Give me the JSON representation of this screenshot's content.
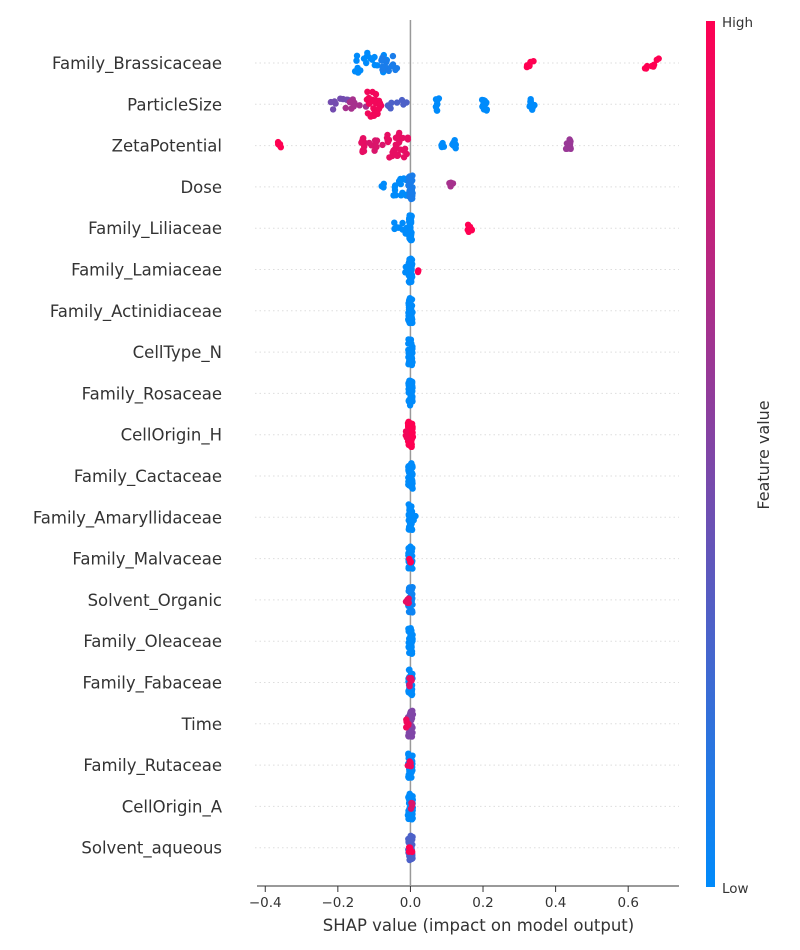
{
  "colors": {
    "low": "#008bfb",
    "high": "#ff0052",
    "zero_line": "#999999",
    "grid": "#dddddd",
    "text": "#333333"
  },
  "chart_data": {
    "type": "scatter",
    "subtype": "shap-beeswarm",
    "xlabel": "SHAP value (impact on model output)",
    "xlim": [
      -0.42,
      0.74
    ],
    "xticks": [
      -0.4,
      -0.2,
      0.0,
      0.2,
      0.4,
      0.6
    ],
    "xtick_labels": [
      "−0.4",
      "−0.2",
      "0.0",
      "0.2",
      "0.4",
      "0.6"
    ],
    "colorbar": {
      "title": "Feature value",
      "high_label": "High",
      "low_label": "Low"
    },
    "features": [
      {
        "name": "Family_Brassicaceae",
        "clusters": [
          {
            "x": -0.11,
            "v": 0.0,
            "n": 20,
            "w": 0.045
          },
          {
            "x": -0.06,
            "v": 0.1,
            "n": 14,
            "w": 0.03
          },
          {
            "x": 0.33,
            "v": 1.0,
            "n": 6,
            "w": 0.01
          },
          {
            "x": 0.665,
            "v": 1.0,
            "n": 8,
            "w": 0.02
          }
        ]
      },
      {
        "name": "ParticleSize",
        "clusters": [
          {
            "x": -0.19,
            "v": 0.45,
            "n": 8,
            "w": 0.03
          },
          {
            "x": -0.15,
            "v": 0.65,
            "n": 8,
            "w": 0.03
          },
          {
            "x": -0.1,
            "v": 0.95,
            "n": 28,
            "w": 0.02
          },
          {
            "x": -0.04,
            "v": 0.3,
            "n": 8,
            "w": 0.03
          },
          {
            "x": 0.075,
            "v": 0.0,
            "n": 10,
            "w": 0.005
          },
          {
            "x": 0.205,
            "v": 0.0,
            "n": 10,
            "w": 0.008
          },
          {
            "x": 0.335,
            "v": 0.0,
            "n": 10,
            "w": 0.008
          }
        ]
      },
      {
        "name": "ZetaPotential",
        "clusters": [
          {
            "x": -0.36,
            "v": 1.0,
            "n": 5,
            "w": 0.005
          },
          {
            "x": -0.13,
            "v": 0.9,
            "n": 12,
            "w": 0.005
          },
          {
            "x": -0.095,
            "v": 0.85,
            "n": 8,
            "w": 0.02
          },
          {
            "x": -0.035,
            "v": 0.9,
            "n": 30,
            "w": 0.03
          },
          {
            "x": 0.09,
            "v": 0.0,
            "n": 4,
            "w": 0.005
          },
          {
            "x": 0.12,
            "v": 0.0,
            "n": 8,
            "w": 0.005
          },
          {
            "x": 0.435,
            "v": 0.6,
            "n": 10,
            "w": 0.008
          }
        ]
      },
      {
        "name": "Dose",
        "clusters": [
          {
            "x": -0.07,
            "v": 0.0,
            "n": 3,
            "w": 0.01
          },
          {
            "x": -0.03,
            "v": 0.0,
            "n": 16,
            "w": 0.02
          },
          {
            "x": 0.0,
            "v": 0.1,
            "n": 30,
            "w": 0.006
          },
          {
            "x": 0.115,
            "v": 0.65,
            "n": 6,
            "w": 0.008
          }
        ]
      },
      {
        "name": "Family_Liliaceae",
        "clusters": [
          {
            "x": -0.025,
            "v": 0.0,
            "n": 10,
            "w": 0.02
          },
          {
            "x": 0.0,
            "v": 0.0,
            "n": 40,
            "w": 0.004
          },
          {
            "x": 0.165,
            "v": 1.0,
            "n": 6,
            "w": 0.008
          }
        ]
      },
      {
        "name": "Family_Lamiaceae",
        "clusters": [
          {
            "x": 0.0,
            "v": 0.0,
            "n": 40,
            "w": 0.005
          },
          {
            "x": -0.012,
            "v": 0.0,
            "n": 3,
            "w": 0.004
          },
          {
            "x": 0.022,
            "v": 1.0,
            "n": 2,
            "w": 0.002
          }
        ]
      },
      {
        "name": "Family_Actinidiaceae",
        "clusters": [
          {
            "x": 0.0,
            "v": 0.0,
            "n": 40,
            "w": 0.006
          }
        ]
      },
      {
        "name": "CellType_N",
        "clusters": [
          {
            "x": 0.0,
            "v": 0.0,
            "n": 40,
            "w": 0.006
          }
        ]
      },
      {
        "name": "Family_Rosaceae",
        "clusters": [
          {
            "x": 0.0,
            "v": 0.0,
            "n": 40,
            "w": 0.006
          }
        ]
      },
      {
        "name": "CellOrigin_H",
        "clusters": [
          {
            "x": 0.0,
            "v": 1.0,
            "n": 44,
            "w": 0.007
          },
          {
            "x": -0.01,
            "v": 0.95,
            "n": 4,
            "w": 0.004
          }
        ]
      },
      {
        "name": "Family_Cactaceae",
        "clusters": [
          {
            "x": 0.0,
            "v": 0.0,
            "n": 40,
            "w": 0.006
          }
        ]
      },
      {
        "name": "Family_Amaryllidaceae",
        "clusters": [
          {
            "x": 0.0,
            "v": 0.0,
            "n": 40,
            "w": 0.005
          },
          {
            "x": 0.012,
            "v": 0.0,
            "n": 3,
            "w": 0.004
          }
        ]
      },
      {
        "name": "Family_Malvaceae",
        "clusters": [
          {
            "x": 0.0,
            "v": 0.0,
            "n": 38,
            "w": 0.006
          },
          {
            "x": 0.0,
            "v": 1.0,
            "n": 4,
            "w": 0.004
          }
        ]
      },
      {
        "name": "Solvent_Organic",
        "clusters": [
          {
            "x": 0.0,
            "v": 0.05,
            "n": 36,
            "w": 0.006
          },
          {
            "x": -0.008,
            "v": 0.9,
            "n": 6,
            "w": 0.005
          }
        ]
      },
      {
        "name": "Family_Oleaceae",
        "clusters": [
          {
            "x": 0.0,
            "v": 0.0,
            "n": 40,
            "w": 0.006
          }
        ]
      },
      {
        "name": "Family_Fabaceae",
        "clusters": [
          {
            "x": 0.0,
            "v": 0.0,
            "n": 36,
            "w": 0.006
          },
          {
            "x": 0.0,
            "v": 0.9,
            "n": 6,
            "w": 0.004
          }
        ]
      },
      {
        "name": "Time",
        "clusters": [
          {
            "x": 0.0,
            "v": 0.5,
            "n": 36,
            "w": 0.007
          },
          {
            "x": -0.008,
            "v": 0.95,
            "n": 5,
            "w": 0.004
          }
        ]
      },
      {
        "name": "Family_Rutaceae",
        "clusters": [
          {
            "x": 0.0,
            "v": 0.0,
            "n": 36,
            "w": 0.006
          },
          {
            "x": -0.004,
            "v": 0.95,
            "n": 5,
            "w": 0.005
          }
        ]
      },
      {
        "name": "CellOrigin_A",
        "clusters": [
          {
            "x": 0.0,
            "v": 0.0,
            "n": 36,
            "w": 0.007
          },
          {
            "x": 0.003,
            "v": 0.85,
            "n": 5,
            "w": 0.005
          }
        ]
      },
      {
        "name": "Solvent_aqueous",
        "clusters": [
          {
            "x": 0.0,
            "v": 0.3,
            "n": 36,
            "w": 0.006
          },
          {
            "x": 0.0,
            "v": 1.0,
            "n": 5,
            "w": 0.005
          }
        ]
      }
    ]
  }
}
